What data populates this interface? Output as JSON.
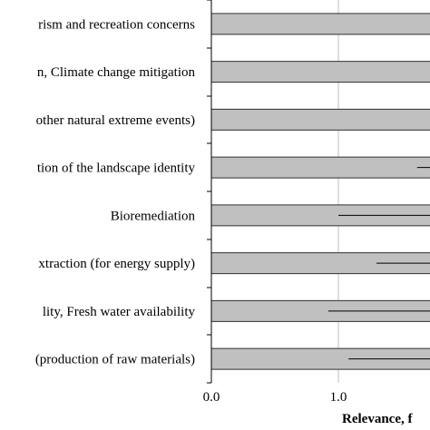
{
  "chart_data": {
    "type": "bar",
    "orientation": "horizontal",
    "categories": [
      "rism and recreation concerns",
      "n, Climate change mitigation",
      "other natural extreme events)",
      "tion of the landscape identity",
      "Bioremediation",
      "xtraction (for energy supply)",
      "lity, Fresh water availability",
      "(production of raw materials)"
    ],
    "values": [
      2.0,
      2.0,
      2.0,
      2.0,
      2.0,
      2.0,
      2.0,
      2.0
    ],
    "error_low": [
      null,
      null,
      null,
      1.62,
      1.0,
      1.3,
      0.92,
      1.08
    ],
    "x_ticks": [
      "0.0",
      "1.0"
    ],
    "xlabel": "Relevance, f",
    "xlim": [
      0,
      1.7
    ],
    "grid": "vertical",
    "colors": {
      "bar": "#c0c0c0",
      "bar_stroke": "#303030",
      "grid": "#bfbfbf",
      "error": "#000000"
    }
  }
}
